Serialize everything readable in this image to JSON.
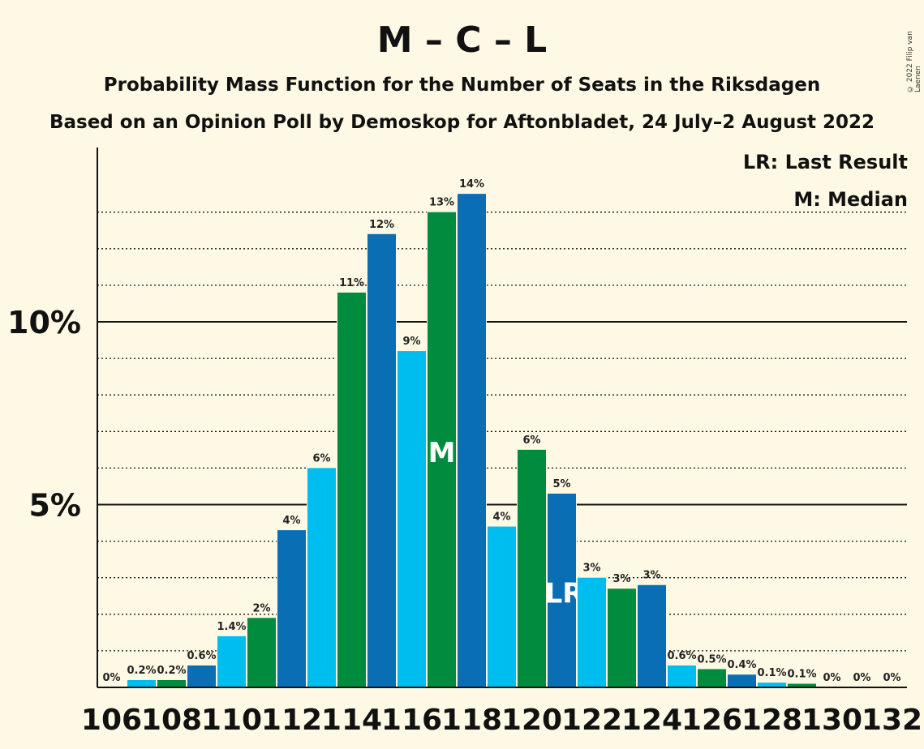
{
  "title": "M – C – L",
  "subtitle": "Probability Mass Function for the Number of Seats in the Riksdagen",
  "subtitle2": "Based on an Opinion Poll by Demoskop for Aftonbladet, 24 July–2 August 2022",
  "copyright": "© 2022 Filip van Laenen",
  "legend": {
    "lr": "LR: Last Result",
    "m": "M: Median"
  },
  "colors": {
    "dark_blue": "#0a6eb4",
    "light_blue": "#00bdf0",
    "green": "#008b3e",
    "background": "#fef9e4"
  },
  "chart_data": {
    "type": "bar",
    "xlabel": "",
    "ylabel": "",
    "ylim": [
      0,
      14.7
    ],
    "y_ticks": [
      {
        "value": 5,
        "label": "5%"
      },
      {
        "value": 10,
        "label": "10%"
      }
    ],
    "x_tick_labels": [
      "106",
      "108",
      "110",
      "112",
      "114",
      "116",
      "118",
      "120",
      "122",
      "124",
      "126",
      "128",
      "130",
      "132"
    ],
    "categories": [
      106,
      107,
      108,
      109,
      110,
      111,
      112,
      113,
      114,
      115,
      116,
      117,
      118,
      119,
      120,
      121,
      122,
      123,
      124,
      125,
      126,
      127,
      128,
      129,
      130,
      131,
      132
    ],
    "values": [
      0.0,
      0.2,
      0.2,
      0.6,
      1.4,
      1.9,
      4.3,
      6.0,
      10.8,
      12.4,
      9.2,
      13.0,
      13.5,
      4.4,
      6.5,
      5.3,
      3.0,
      2.7,
      2.8,
      0.6,
      0.5,
      0.35,
      0.13,
      0.1,
      0.0,
      0.0,
      0.0
    ],
    "labels": [
      "0%",
      "0.2%",
      "0.2%",
      "0.6%",
      "1.4%",
      "2%",
      "4%",
      "6%",
      "11%",
      "12%",
      "9%",
      "13%",
      "14%",
      "4%",
      "6%",
      "5%",
      "3%",
      "3%",
      "3%",
      "0.6%",
      "0.5%",
      "0.4%",
      "0.1%",
      "0.1%",
      "0%",
      "0%",
      "0%"
    ],
    "median": 117,
    "median_label": "M",
    "last_result": 121,
    "last_result_label": "LR",
    "grid": true
  }
}
